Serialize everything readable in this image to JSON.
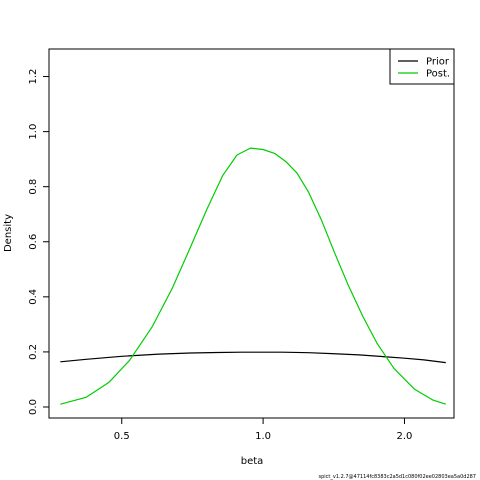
{
  "chart_data": {
    "type": "line",
    "xlabel": "beta",
    "ylabel": "Density",
    "x_scale": "log",
    "xlim": [
      0.35,
      2.55
    ],
    "ylim": [
      -0.04,
      1.3
    ],
    "x_ticks": [
      {
        "value": 0.5,
        "label": "0.5"
      },
      {
        "value": 1.0,
        "label": "1.0"
      },
      {
        "value": 2.0,
        "label": "2.0"
      }
    ],
    "y_ticks": [
      {
        "value": 0.0,
        "label": "0.0"
      },
      {
        "value": 0.2,
        "label": "0.2"
      },
      {
        "value": 0.4,
        "label": "0.4"
      },
      {
        "value": 0.6,
        "label": "0.6"
      },
      {
        "value": 0.8,
        "label": "0.8"
      },
      {
        "value": 1.0,
        "label": "1.0"
      },
      {
        "value": 1.2,
        "label": "1.2"
      }
    ],
    "grid": false,
    "legend_position": "top-right",
    "series": [
      {
        "name": "Prior",
        "color": "#000000",
        "x": [
          0.37,
          0.42,
          0.5,
          0.6,
          0.7,
          0.8,
          0.9,
          1.0,
          1.1,
          1.25,
          1.4,
          1.6,
          1.8,
          2.0,
          2.2,
          2.45
        ],
        "y": [
          0.164,
          0.173,
          0.184,
          0.192,
          0.196,
          0.198,
          0.199,
          0.199,
          0.199,
          0.197,
          0.194,
          0.189,
          0.183,
          0.177,
          0.171,
          0.161
        ]
      },
      {
        "name": "Post.",
        "color": "#00cd00",
        "x": [
          0.37,
          0.42,
          0.47,
          0.52,
          0.58,
          0.64,
          0.7,
          0.76,
          0.82,
          0.88,
          0.94,
          1.0,
          1.06,
          1.12,
          1.18,
          1.25,
          1.33,
          1.42,
          1.52,
          1.63,
          1.75,
          1.9,
          2.1,
          2.3,
          2.45
        ],
        "y": [
          0.01,
          0.035,
          0.09,
          0.17,
          0.29,
          0.43,
          0.58,
          0.72,
          0.84,
          0.915,
          0.94,
          0.935,
          0.92,
          0.89,
          0.85,
          0.78,
          0.68,
          0.56,
          0.44,
          0.33,
          0.23,
          0.14,
          0.065,
          0.025,
          0.01
        ]
      }
    ]
  },
  "footer_text": "spict_v1.2.7@47114fc8383c2a5d1c080f02ee02803ea5a0d287"
}
